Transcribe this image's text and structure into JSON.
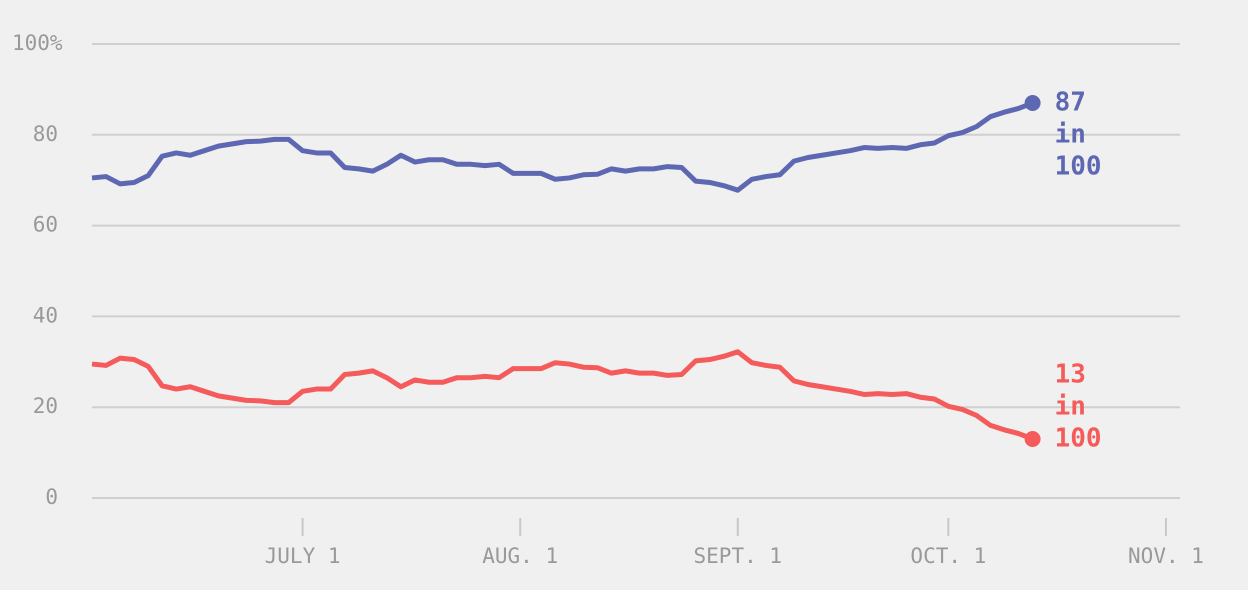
{
  "chart_data": {
    "type": "line",
    "x": [
      0,
      2,
      4,
      6,
      8,
      10,
      12,
      14,
      16,
      18,
      20,
      22,
      24,
      26,
      28,
      30,
      32,
      34,
      36,
      38,
      40,
      42,
      44,
      46,
      48,
      50,
      52,
      54,
      56,
      58,
      60,
      62,
      64,
      66,
      68,
      70,
      72,
      74,
      76,
      78,
      80,
      82,
      84,
      86,
      88,
      90,
      92,
      94,
      96,
      98,
      100,
      102,
      104,
      106,
      108,
      110,
      112,
      114,
      116,
      118,
      120,
      122,
      124,
      126,
      128,
      130,
      132,
      134
    ],
    "series": [
      {
        "name": "blue",
        "color": "#5e68b2",
        "end_label": [
          "87",
          "in",
          "100"
        ],
        "values": [
          70.5,
          70.8,
          69.2,
          69.5,
          71,
          75.3,
          76,
          75.5,
          76.5,
          77.5,
          78,
          78.5,
          78.6,
          79,
          79,
          76.5,
          76,
          76,
          72.8,
          72.5,
          72,
          73.5,
          75.5,
          74,
          74.5,
          74.5,
          73.5,
          73.5,
          73.2,
          73.5,
          71.5,
          71.5,
          71.5,
          70.2,
          70.5,
          71.2,
          71.3,
          72.5,
          72,
          72.5,
          72.5,
          73,
          72.8,
          69.8,
          69.5,
          68.8,
          67.8,
          70.2,
          70.8,
          71.2,
          74.2,
          75,
          75.5,
          76,
          76.5,
          77.2,
          77,
          77.2,
          77,
          77.8,
          78.2,
          79.8,
          80.5,
          81.8,
          84,
          85,
          85.8,
          87
        ]
      },
      {
        "name": "red",
        "color": "#f45b5a",
        "end_label": [
          "13",
          "in",
          "100"
        ],
        "values": [
          29.5,
          29.2,
          30.8,
          30.5,
          29,
          24.7,
          24,
          24.5,
          23.5,
          22.5,
          22,
          21.5,
          21.4,
          21,
          21,
          23.5,
          24,
          24,
          27.2,
          27.5,
          28,
          26.5,
          24.5,
          26,
          25.5,
          25.5,
          26.5,
          26.5,
          26.8,
          26.5,
          28.5,
          28.5,
          28.5,
          29.8,
          29.5,
          28.8,
          28.7,
          27.5,
          28,
          27.5,
          27.5,
          27,
          27.2,
          30.2,
          30.5,
          31.2,
          32.2,
          29.8,
          29.2,
          28.8,
          25.8,
          25,
          24.5,
          24,
          23.5,
          22.8,
          23,
          22.8,
          23,
          22.2,
          21.8,
          20.2,
          19.5,
          18.2,
          16,
          15,
          14.2,
          13
        ]
      }
    ],
    "xlim": [
      0,
      155
    ],
    "xticks": [
      {
        "value": 30,
        "label": "JULY 1"
      },
      {
        "value": 61,
        "label": "AUG. 1"
      },
      {
        "value": 92,
        "label": "SEPT. 1"
      },
      {
        "value": 122,
        "label": "OCT. 1"
      },
      {
        "value": 153,
        "label": "NOV. 1"
      }
    ],
    "ylim": [
      0,
      100
    ],
    "yticks": [
      0,
      20,
      40,
      60,
      80,
      {
        "value": 100,
        "label": "100%"
      }
    ],
    "grid": true
  }
}
